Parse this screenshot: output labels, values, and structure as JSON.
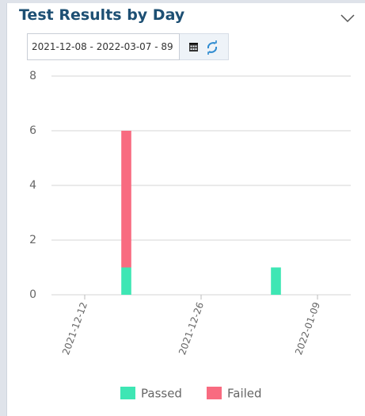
{
  "header": {
    "title": "Test Results by Day",
    "date_range": "2021-12-08 - 2022-03-07 - 89"
  },
  "chart_data": {
    "type": "stacked-bar",
    "x": [
      "2021-12-17",
      "2022-01-04"
    ],
    "xlim": [
      "2021-12-08",
      "2022-01-13"
    ],
    "xticks": [
      "2021-12-12",
      "2021-12-26",
      "2022-01-09"
    ],
    "series": [
      {
        "name": "Passed",
        "color": "#3ee6b4",
        "values": [
          1,
          1
        ]
      },
      {
        "name": "Failed",
        "color": "#f86b80",
        "values": [
          5,
          0
        ]
      }
    ],
    "ylim": [
      0,
      8
    ],
    "yticks": [
      0,
      2,
      4,
      6,
      8
    ],
    "grid": true,
    "legend": "bottom"
  }
}
